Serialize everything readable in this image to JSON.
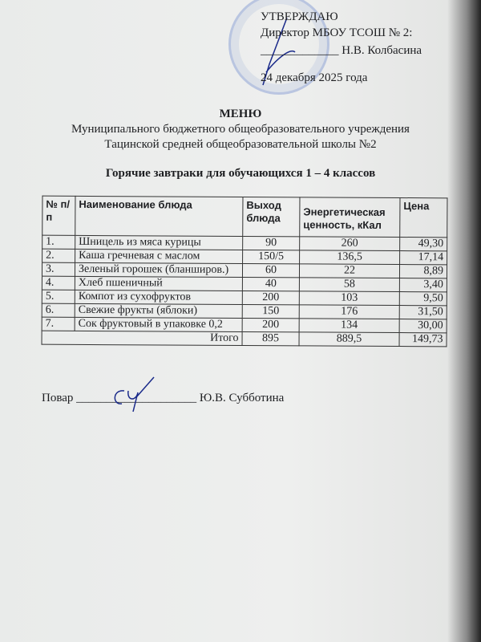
{
  "approval": {
    "title": "УТВЕРЖДАЮ",
    "position": "Директор МБОУ ТСОШ № 2:",
    "signature_line": "_____________ Н.В. Колбасина",
    "date": "24  декабря  2025 года"
  },
  "heading": {
    "title": "МЕНЮ",
    "line1": "Муниципального бюджетного общеобразовательного учреждения",
    "line2": "Тацинской средней общеобразовательной школы №2",
    "subtitle": "Горячие завтраки для обучающихся 1 – 4 классов"
  },
  "table": {
    "headers": [
      "№ п/п",
      "Наименование блюда",
      "Выход блюда",
      "Энергетическая ценность, кКал",
      "Цена"
    ],
    "rows": [
      [
        "1.",
        "Шницель из мяса курицы",
        "90",
        "260",
        "49,30"
      ],
      [
        "2.",
        "Каша гречневая с маслом",
        "150/5",
        "136,5",
        "17,14"
      ],
      [
        "3.",
        "Зеленый горошек (бланширов.)",
        "60",
        "22",
        "8,89"
      ],
      [
        "4.",
        "Хлеб пшеничный",
        "40",
        "58",
        "3,40"
      ],
      [
        "5.",
        "Компот из сухофруктов",
        "200",
        "103",
        "9,50"
      ],
      [
        "6.",
        "Свежие фрукты (яблоки)",
        "150",
        "176",
        "31,50"
      ],
      [
        "7.",
        "Сок фруктовый в упаковке 0,2",
        "200",
        "134",
        "30,00"
      ]
    ],
    "total": {
      "label": "Итого",
      "yield": "895",
      "energy": "889,5",
      "price": "149,73"
    }
  },
  "cook": {
    "label": "Повар",
    "line": "____________________",
    "name": "Ю.В. Субботина"
  },
  "colors": {
    "stamp": "#5a78c8",
    "signature": "#1a2a8a"
  }
}
